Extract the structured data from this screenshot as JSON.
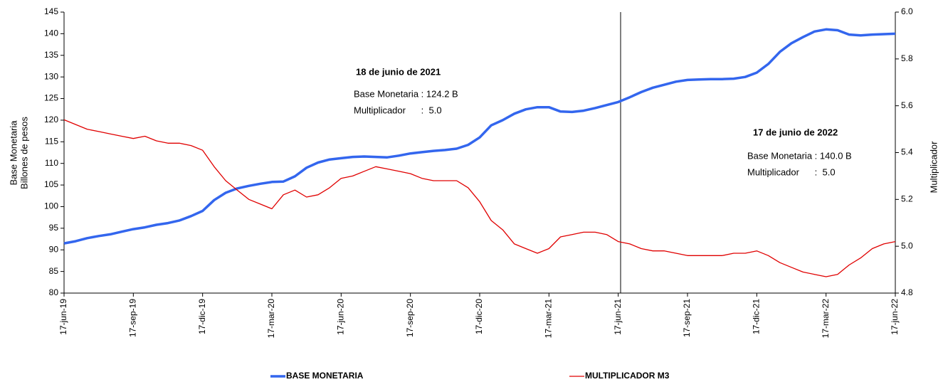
{
  "chart_data": {
    "type": "line",
    "ylabel": [
      "Base Monetaria",
      "Billones de pesos"
    ],
    "y2label": "Multiplicador",
    "categories": [
      "17-jun-19",
      null,
      null,
      null,
      null,
      null,
      "17-sep-19",
      null,
      null,
      null,
      null,
      null,
      "17-dic-19",
      null,
      null,
      null,
      null,
      null,
      "17-mar-20",
      null,
      null,
      null,
      null,
      null,
      "17-jun-20",
      null,
      null,
      null,
      null,
      null,
      "17-sep-20",
      null,
      null,
      null,
      null,
      null,
      "17-dic-20",
      null,
      null,
      null,
      null,
      null,
      "17-mar-21",
      null,
      null,
      null,
      null,
      null,
      "17-jun-21",
      null,
      null,
      null,
      null,
      null,
      "17-sep-21",
      null,
      null,
      null,
      null,
      null,
      "17-dic-21",
      null,
      null,
      null,
      null,
      null,
      "17-mar-22",
      null,
      null,
      null,
      null,
      null,
      "17-jun-22"
    ],
    "series": [
      {
        "name": "BASE MONETARIA",
        "color": "#3366ee",
        "axis": "y",
        "values": [
          91.5,
          92.0,
          92.7,
          93.2,
          93.6,
          94.2,
          94.8,
          95.2,
          95.8,
          96.2,
          96.8,
          97.8,
          99.0,
          101.5,
          103.2,
          104.2,
          104.8,
          105.3,
          105.7,
          105.8,
          107.0,
          109.0,
          110.2,
          110.9,
          111.2,
          111.5,
          111.6,
          111.5,
          111.4,
          111.8,
          112.3,
          112.6,
          112.9,
          113.1,
          113.4,
          114.3,
          116.0,
          118.8,
          120.0,
          121.5,
          122.5,
          123.0,
          123.0,
          122.0,
          121.9,
          122.2,
          122.8,
          123.5,
          124.2,
          125.3,
          126.5,
          127.5,
          128.2,
          128.9,
          129.3,
          129.4,
          129.5,
          129.5,
          129.6,
          130.0,
          131.0,
          133.0,
          135.8,
          137.8,
          139.2,
          140.5,
          141.0,
          140.8,
          139.8,
          139.6,
          139.8,
          139.9,
          140.0
        ]
      },
      {
        "name": "MULTIPLICADOR M3",
        "color": "#e00000",
        "axis": "y2",
        "values": [
          5.54,
          5.52,
          5.5,
          5.49,
          5.48,
          5.47,
          5.46,
          5.47,
          5.45,
          5.44,
          5.44,
          5.43,
          5.41,
          5.34,
          5.28,
          5.24,
          5.2,
          5.18,
          5.16,
          5.22,
          5.24,
          5.21,
          5.22,
          5.25,
          5.29,
          5.3,
          5.32,
          5.34,
          5.33,
          5.32,
          5.31,
          5.29,
          5.28,
          5.28,
          5.28,
          5.25,
          5.19,
          5.11,
          5.07,
          5.01,
          4.99,
          4.97,
          4.99,
          5.04,
          5.05,
          5.06,
          5.06,
          5.05,
          5.02,
          5.01,
          4.99,
          4.98,
          4.98,
          4.97,
          4.96,
          4.96,
          4.96,
          4.96,
          4.97,
          4.97,
          4.98,
          4.96,
          4.93,
          4.91,
          4.89,
          4.88,
          4.87,
          4.88,
          4.92,
          4.95,
          4.99,
          5.01,
          5.02
        ]
      }
    ],
    "ylim": [
      80,
      145
    ],
    "yticks": [
      80,
      85,
      90,
      95,
      100,
      105,
      110,
      115,
      120,
      125,
      130,
      135,
      140,
      145
    ],
    "y2lim": [
      4.8,
      6.0
    ],
    "y2ticks": [
      4.8,
      {
        "value": 5.0,
        "label": "5.0"
      },
      5.2,
      5.4,
      5.6,
      5.8,
      {
        "value": 6.0,
        "label": "6.0"
      }
    ],
    "annotations": [
      {
        "title": "18 de junio de 2021",
        "lines": [
          "Base Monetaria : 124.2 B",
          "Multiplicador      :  5.0"
        ]
      },
      {
        "title": "17 de junio de 2022",
        "lines": [
          "Base Monetaria : 140.0 B",
          "Multiplicador      :  5.0"
        ]
      }
    ],
    "legend": "bottom"
  }
}
